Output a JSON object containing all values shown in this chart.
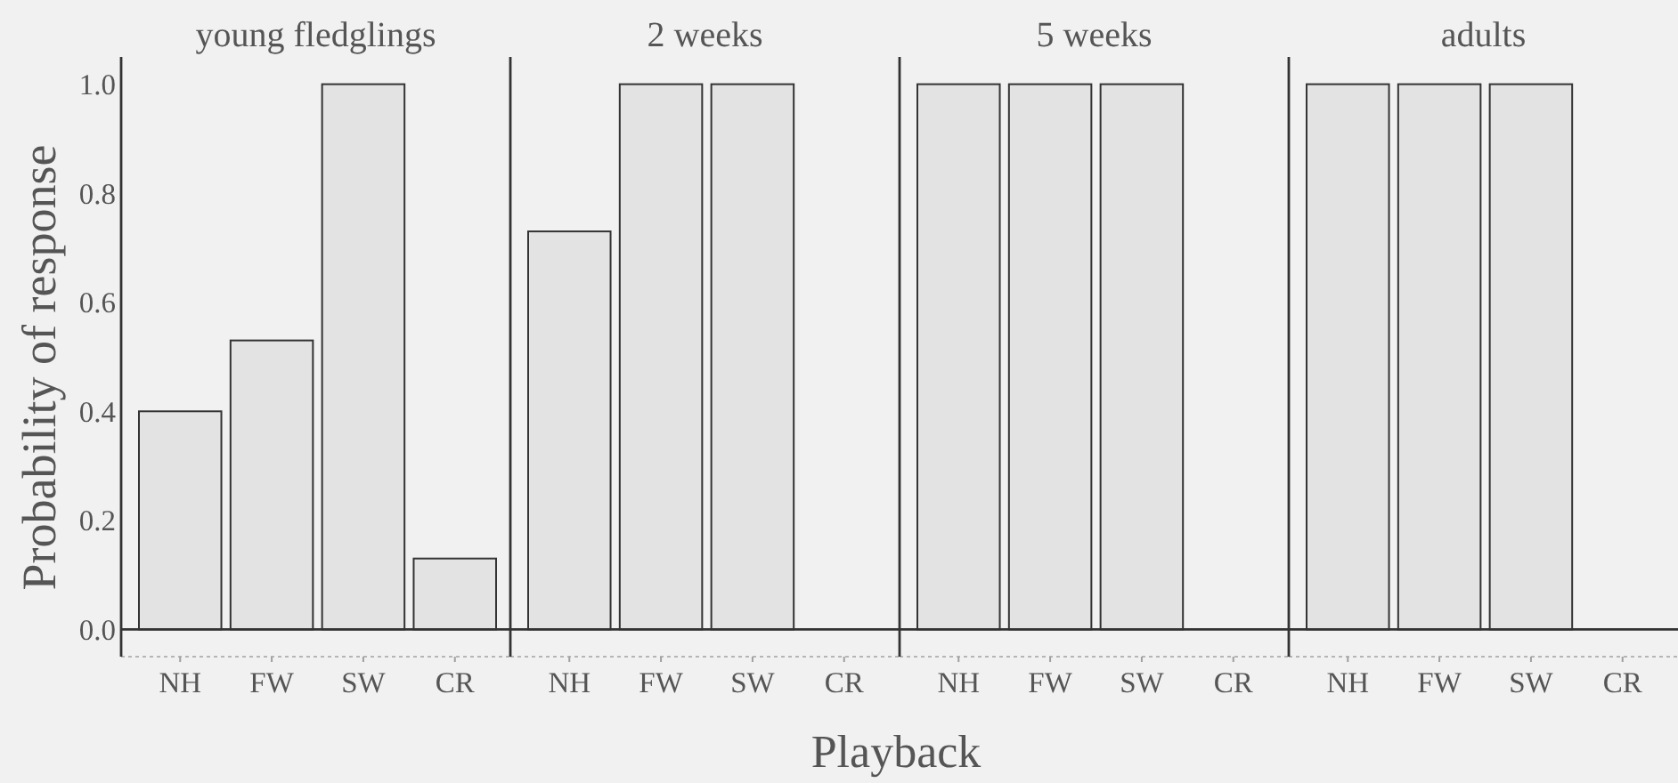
{
  "chart_data": [
    {
      "type": "bar",
      "title": "young fledglings",
      "ylabel": "Probability of response",
      "categories": [
        "NH",
        "FW",
        "SW",
        "CR"
      ],
      "values": [
        0.4,
        0.53,
        1.0,
        0.13
      ],
      "color": "#e3e3e3",
      "ylim": [
        -0.05,
        1.05
      ],
      "yticks": [
        {
          "value": 0,
          "label": "0.0"
        },
        0.2,
        0.4,
        0.6,
        0.8,
        {
          "value": 1,
          "label": "1.0"
        }
      ],
      "ref_lines": [
        {
          "axis": "y",
          "value": 0,
          "color": "#333333"
        }
      ]
    },
    {
      "type": "bar",
      "title": "2 weeks",
      "xlabel": "Playback",
      "categories": [
        "NH",
        "FW",
        "SW",
        "CR"
      ],
      "values": [
        0.73,
        1.0,
        1.0,
        0
      ],
      "color": "#e3e3e3",
      "ylim": [
        -0.05,
        1.05
      ],
      "tick_labels": "x",
      "ref_lines": [
        {
          "axis": "y",
          "value": 0,
          "color": "#333333"
        }
      ]
    },
    {
      "type": "bar",
      "title": "5 weeks",
      "categories": [
        "NH",
        "FW",
        "SW",
        "CR"
      ],
      "values": [
        1.0,
        1.0,
        1.0,
        0
      ],
      "color": "#e3e3e3",
      "ylim": [
        -0.05,
        1.05
      ],
      "tick_labels": "x",
      "ref_lines": [
        {
          "axis": "y",
          "value": 0,
          "color": "#333333"
        }
      ]
    },
    {
      "type": "bar",
      "title": "adults",
      "categories": [
        "NH",
        "FW",
        "SW",
        "CR"
      ],
      "values": [
        1.0,
        1.0,
        1.0,
        0
      ],
      "color": "#e3e3e3",
      "ylim": [
        -0.05,
        1.05
      ],
      "tick_labels": "x",
      "ref_lines": [
        {
          "axis": "y",
          "value": 0,
          "color": "#333333"
        }
      ]
    }
  ]
}
